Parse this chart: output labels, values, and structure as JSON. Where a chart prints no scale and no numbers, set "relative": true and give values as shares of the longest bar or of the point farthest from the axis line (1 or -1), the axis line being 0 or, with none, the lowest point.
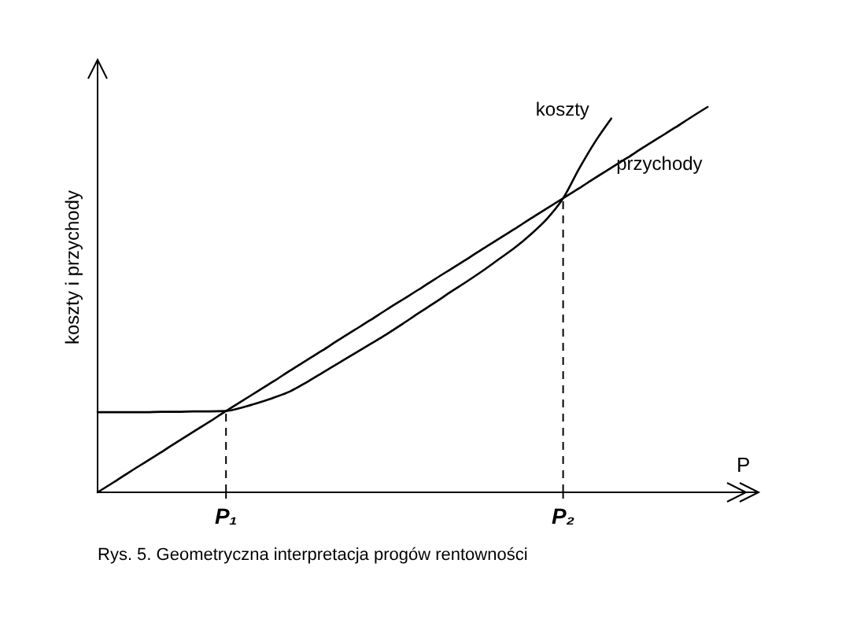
{
  "chart_data": {
    "type": "line",
    "relative": true,
    "xlabel": "P",
    "ylabel": "koszty i przychody",
    "categories": [
      null,
      null,
      null,
      null,
      null,
      null,
      null,
      null,
      "P₁",
      null,
      null,
      null,
      null,
      null,
      null,
      null,
      null,
      null,
      null,
      null,
      null,
      null,
      null,
      null,
      null,
      null,
      null,
      null,
      null,
      "P₂",
      null,
      null,
      null,
      null,
      null,
      null,
      null,
      null,
      null
    ],
    "legend": false,
    "grid": false,
    "marker": "none",
    "line_style": "solid",
    "series": [
      {
        "name": "koszty",
        "color": "#000000",
        "values": [
          0.208,
          0.208,
          0.208,
          0.208,
          0.209,
          0.209,
          0.21,
          0.21,
          0.211,
          0.22,
          0.232,
          0.246,
          0.262,
          0.285,
          0.31,
          0.335,
          0.36,
          0.385,
          0.41,
          0.437,
          0.465,
          0.492,
          0.52,
          0.547,
          0.575,
          0.605,
          0.635,
          0.67,
          0.71,
          0.763,
          0.84,
          0.91,
          0.97,
          null,
          null,
          null,
          null,
          null,
          null
        ]
      },
      {
        "name": "przychody",
        "color": "#000000",
        "values": [
          0,
          0.026,
          0.053,
          0.079,
          0.105,
          0.132,
          0.158,
          0.184,
          0.211,
          0.237,
          0.263,
          0.289,
          0.316,
          0.342,
          0.368,
          0.395,
          0.421,
          0.447,
          0.474,
          0.5,
          0.526,
          0.553,
          0.579,
          0.605,
          0.632,
          0.658,
          0.684,
          0.711,
          0.737,
          0.763,
          0.789,
          0.816,
          0.842,
          0.868,
          0.895,
          0.921,
          0.947,
          0.974,
          1
        ]
      }
    ],
    "ref_lines": [
      {
        "axis": "x",
        "value": "P₁",
        "line_style": "dashed",
        "color": "#000000"
      },
      {
        "axis": "x",
        "value": "P₂",
        "line_style": "dashed",
        "color": "#000000"
      }
    ],
    "annotations": [
      "Rys. 5. Geometryczna interpretacja progów rentowności"
    ]
  }
}
